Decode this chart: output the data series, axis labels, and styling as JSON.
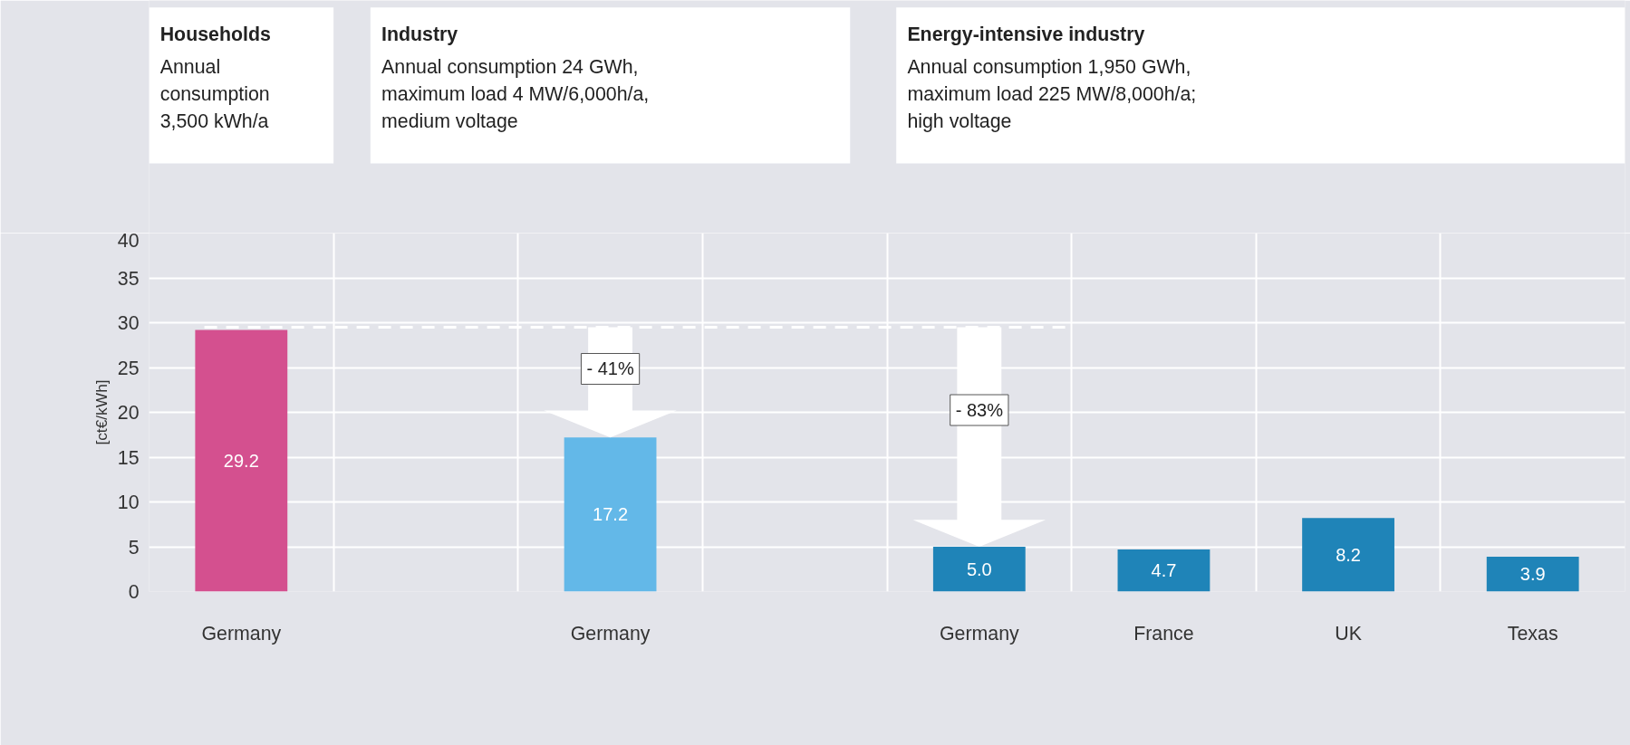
{
  "chart_data": {
    "type": "bar",
    "ylabel": "[ct€/kWh]",
    "categories": [
      "Germany",
      null,
      "Germany",
      null,
      "Germany",
      "France",
      "UK",
      "Texas"
    ],
    "values": [
      29.2,
      null,
      17.2,
      null,
      5.0,
      4.7,
      8.2,
      3.9
    ],
    "colors": [
      "#d4508f",
      "#d4508f",
      "#63b8e8",
      "#63b8e8",
      "#1f84b8",
      "#1f84b8",
      "#1f84b8",
      "#1f84b8"
    ],
    "value_labels": [
      "29.2",
      null,
      "17.2",
      null,
      "5.0",
      "4.7",
      "8.2",
      "3.9"
    ],
    "ylim": [
      0,
      40
    ],
    "yticks": [
      0,
      5,
      10,
      15,
      20,
      25,
      30,
      35,
      40
    ],
    "grid": true,
    "ref_lines": [
      {
        "axis": "y",
        "value": 29.5,
        "label": null,
        "color": "#ffffff",
        "line_style": "dashed"
      }
    ],
    "annotations": [
      "Households\nAnnual\nconsumption\n3,500 kWh/a",
      "Industry\nAnnual consumption 24 GWh,\nmaximum load 4 MW/6,000h/a,\nmedium voltage",
      "Energy-intensive industry\nAnnual consumption 1,950 GWh,\nmaximum load 225 MW/8,000h/a;\nhigh voltage",
      "- 41%",
      "- 83%"
    ]
  }
}
